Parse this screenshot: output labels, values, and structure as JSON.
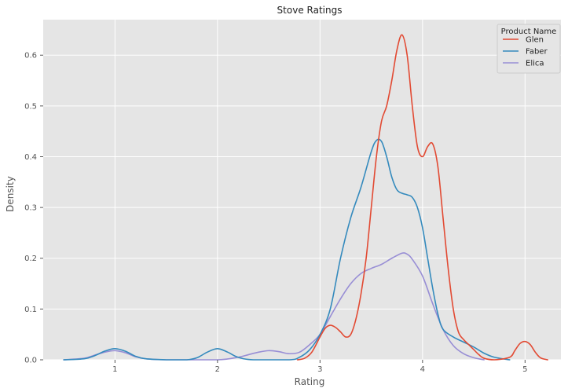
{
  "chart_data": {
    "type": "line",
    "title": "Stove Ratings",
    "xlabel": "Rating",
    "ylabel": "Density",
    "xlim": [
      0.3,
      5.35
    ],
    "ylim": [
      0,
      0.67
    ],
    "xticks": [
      1,
      2,
      3,
      4,
      5
    ],
    "xtick_labels": [
      "1",
      "2",
      "3",
      "4",
      "5"
    ],
    "yticks": [
      0.0,
      0.1,
      0.2,
      0.3,
      0.4,
      0.5,
      0.6
    ],
    "ytick_labels": [
      "0.0",
      "0.1",
      "0.2",
      "0.3",
      "0.4",
      "0.5",
      "0.6"
    ],
    "grid": true,
    "legend": {
      "title": "Product Name",
      "position": "top-right"
    },
    "series": [
      {
        "name": "Glen",
        "color": "#e24a33",
        "points": [
          [
            2.78,
            0.0
          ],
          [
            2.85,
            0.003
          ],
          [
            2.92,
            0.015
          ],
          [
            3.0,
            0.045
          ],
          [
            3.05,
            0.062
          ],
          [
            3.1,
            0.068
          ],
          [
            3.15,
            0.064
          ],
          [
            3.2,
            0.055
          ],
          [
            3.25,
            0.045
          ],
          [
            3.3,
            0.05
          ],
          [
            3.35,
            0.08
          ],
          [
            3.4,
            0.13
          ],
          [
            3.45,
            0.2
          ],
          [
            3.5,
            0.3
          ],
          [
            3.55,
            0.4
          ],
          [
            3.6,
            0.47
          ],
          [
            3.65,
            0.5
          ],
          [
            3.7,
            0.55
          ],
          [
            3.75,
            0.61
          ],
          [
            3.8,
            0.64
          ],
          [
            3.85,
            0.6
          ],
          [
            3.9,
            0.5
          ],
          [
            3.95,
            0.42
          ],
          [
            4.0,
            0.4
          ],
          [
            4.05,
            0.42
          ],
          [
            4.1,
            0.425
          ],
          [
            4.15,
            0.38
          ],
          [
            4.2,
            0.28
          ],
          [
            4.25,
            0.18
          ],
          [
            4.3,
            0.1
          ],
          [
            4.35,
            0.055
          ],
          [
            4.4,
            0.04
          ],
          [
            4.45,
            0.03
          ],
          [
            4.5,
            0.02
          ],
          [
            4.55,
            0.01
          ],
          [
            4.6,
            0.003
          ],
          [
            4.7,
            0.0
          ],
          [
            4.85,
            0.005
          ],
          [
            4.9,
            0.018
          ],
          [
            4.95,
            0.032
          ],
          [
            5.0,
            0.036
          ],
          [
            5.05,
            0.03
          ],
          [
            5.1,
            0.015
          ],
          [
            5.15,
            0.004
          ],
          [
            5.22,
            0.0
          ]
        ]
      },
      {
        "name": "Faber",
        "color": "#348abd",
        "points": [
          [
            0.5,
            0.0
          ],
          [
            0.7,
            0.002
          ],
          [
            0.8,
            0.008
          ],
          [
            0.9,
            0.017
          ],
          [
            1.0,
            0.022
          ],
          [
            1.1,
            0.017
          ],
          [
            1.2,
            0.007
          ],
          [
            1.3,
            0.002
          ],
          [
            1.5,
            0.0
          ],
          [
            1.7,
            0.0
          ],
          [
            1.8,
            0.004
          ],
          [
            1.9,
            0.015
          ],
          [
            2.0,
            0.022
          ],
          [
            2.1,
            0.015
          ],
          [
            2.2,
            0.005
          ],
          [
            2.35,
            0.0
          ],
          [
            2.7,
            0.0
          ],
          [
            2.8,
            0.005
          ],
          [
            2.9,
            0.02
          ],
          [
            3.0,
            0.05
          ],
          [
            3.1,
            0.1
          ],
          [
            3.2,
            0.2
          ],
          [
            3.3,
            0.28
          ],
          [
            3.4,
            0.34
          ],
          [
            3.5,
            0.41
          ],
          [
            3.55,
            0.432
          ],
          [
            3.6,
            0.43
          ],
          [
            3.65,
            0.4
          ],
          [
            3.7,
            0.36
          ],
          [
            3.75,
            0.335
          ],
          [
            3.8,
            0.328
          ],
          [
            3.85,
            0.325
          ],
          [
            3.9,
            0.32
          ],
          [
            3.95,
            0.3
          ],
          [
            4.0,
            0.26
          ],
          [
            4.05,
            0.2
          ],
          [
            4.1,
            0.14
          ],
          [
            4.15,
            0.09
          ],
          [
            4.2,
            0.06
          ],
          [
            4.3,
            0.045
          ],
          [
            4.4,
            0.035
          ],
          [
            4.5,
            0.025
          ],
          [
            4.6,
            0.013
          ],
          [
            4.7,
            0.005
          ],
          [
            4.85,
            0.0
          ]
        ]
      },
      {
        "name": "Elica",
        "color": "#988ed5",
        "points": [
          [
            0.5,
            0.0
          ],
          [
            0.7,
            0.003
          ],
          [
            0.8,
            0.009
          ],
          [
            0.9,
            0.015
          ],
          [
            1.0,
            0.018
          ],
          [
            1.1,
            0.014
          ],
          [
            1.2,
            0.006
          ],
          [
            1.3,
            0.002
          ],
          [
            1.5,
            0.0
          ],
          [
            2.0,
            0.0
          ],
          [
            2.2,
            0.005
          ],
          [
            2.3,
            0.01
          ],
          [
            2.4,
            0.015
          ],
          [
            2.5,
            0.018
          ],
          [
            2.6,
            0.016
          ],
          [
            2.7,
            0.012
          ],
          [
            2.8,
            0.015
          ],
          [
            2.9,
            0.03
          ],
          [
            3.0,
            0.05
          ],
          [
            3.1,
            0.085
          ],
          [
            3.2,
            0.12
          ],
          [
            3.3,
            0.15
          ],
          [
            3.4,
            0.17
          ],
          [
            3.5,
            0.18
          ],
          [
            3.6,
            0.188
          ],
          [
            3.7,
            0.2
          ],
          [
            3.8,
            0.21
          ],
          [
            3.85,
            0.208
          ],
          [
            3.9,
            0.198
          ],
          [
            4.0,
            0.165
          ],
          [
            4.1,
            0.11
          ],
          [
            4.2,
            0.06
          ],
          [
            4.3,
            0.028
          ],
          [
            4.4,
            0.012
          ],
          [
            4.5,
            0.004
          ],
          [
            4.6,
            0.0
          ]
        ]
      }
    ]
  }
}
